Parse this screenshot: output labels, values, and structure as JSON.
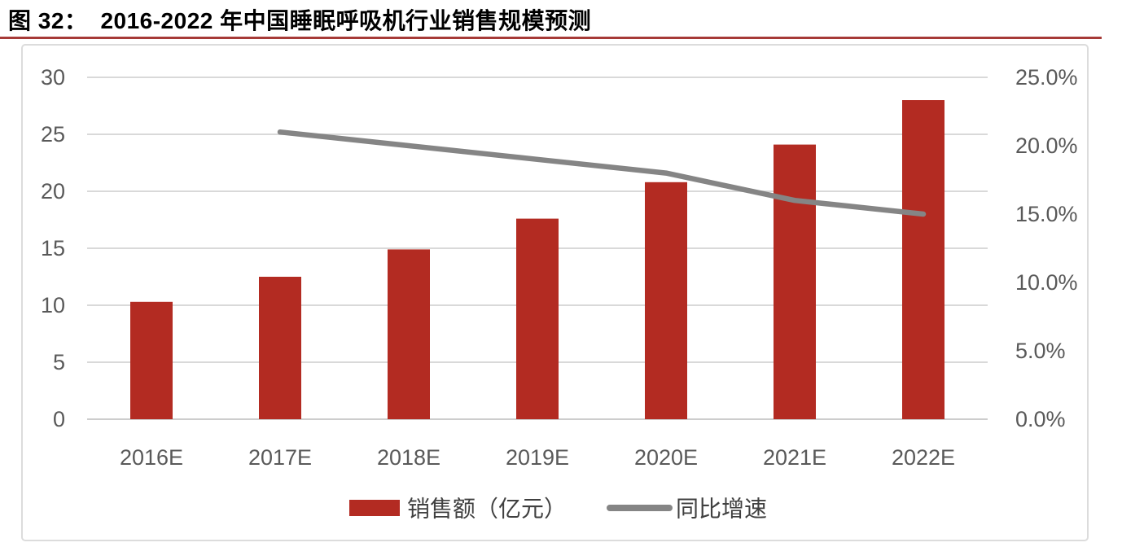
{
  "figure": {
    "label": "图 32：",
    "title": "2016-2022 年中国睡眠呼吸机行业销售规模预测"
  },
  "chart_data": {
    "type": "bar+line",
    "categories": [
      "2016E",
      "2017E",
      "2018E",
      "2019E",
      "2020E",
      "2021E",
      "2022E"
    ],
    "series": [
      {
        "name": "销售额（亿元）",
        "type": "bar",
        "axis": "left",
        "color": "#B32B22",
        "values": [
          10.3,
          12.5,
          14.9,
          17.6,
          20.8,
          24.1,
          28.0
        ]
      },
      {
        "name": "同比增速",
        "type": "line",
        "axis": "right",
        "color": "#858585",
        "unit": "%",
        "values": [
          null,
          21.0,
          20.0,
          19.0,
          18.0,
          16.0,
          15.0
        ]
      }
    ],
    "left_axis": {
      "min": 0,
      "max": 30,
      "ticks": [
        0,
        5,
        10,
        15,
        20,
        25,
        30
      ]
    },
    "right_axis": {
      "min": 0,
      "max": 25,
      "tick_step": 5,
      "ticks": [
        "0.0%",
        "5.0%",
        "10.0%",
        "15.0%",
        "20.0%",
        "25.0%"
      ]
    },
    "grid": true,
    "legend_position": "bottom"
  },
  "colors": {
    "bar": "#B32B22",
    "line": "#858585",
    "gridline": "#D9D9D9",
    "baseline": "#CDCDCD",
    "axis_text": "#595959",
    "legend_text": "#404040",
    "title_rule": "#A63A37",
    "panel_border": "#DCDCDC",
    "background": "#FFFFFF"
  }
}
